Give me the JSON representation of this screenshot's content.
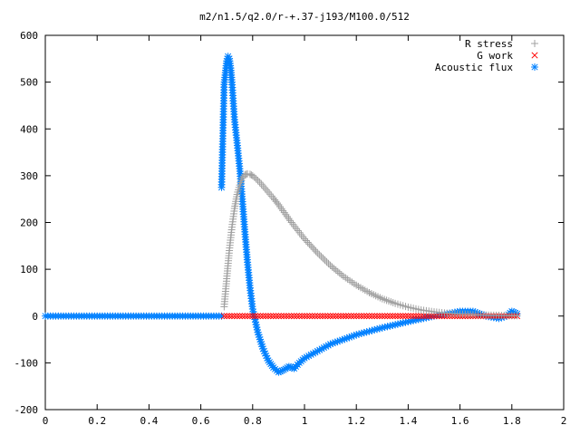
{
  "chart_data": {
    "type": "scatter",
    "title": "m2/n1.5/q2.0/r-+.37-j193/M100.0/512",
    "xlim": [
      0,
      2
    ],
    "ylim": [
      -200,
      600
    ],
    "x_ticks": [
      "0",
      "0.2",
      "0.4",
      "0.6",
      "0.8",
      "1",
      "1.2",
      "1.4",
      "1.6",
      "1.8",
      "2"
    ],
    "y_ticks": [
      "600",
      "500",
      "400",
      "300",
      "200",
      "100",
      "0",
      "-100",
      "-200"
    ],
    "x_tick_values": [
      0,
      0.2,
      0.4,
      0.6,
      0.8,
      1.0,
      1.2,
      1.4,
      1.6,
      1.8,
      2.0
    ],
    "y_tick_values": [
      600,
      500,
      400,
      300,
      200,
      100,
      0,
      -100,
      -200
    ],
    "grid": false,
    "legend_position": "top-right",
    "series": [
      {
        "name": "R stress",
        "marker": "plus",
        "color": "#a0a0a0",
        "x": [
          0.69,
          0.7,
          0.71,
          0.72,
          0.73,
          0.74,
          0.75,
          0.76,
          0.77,
          0.78,
          0.79,
          0.8,
          0.82,
          0.84,
          0.86,
          0.88,
          0.9,
          0.95,
          1.0,
          1.05,
          1.1,
          1.15,
          1.2,
          1.25,
          1.3,
          1.35,
          1.4,
          1.45,
          1.5,
          1.55,
          1.6,
          1.65,
          1.7,
          1.75,
          1.8,
          1.82
        ],
        "y": [
          20,
          80,
          140,
          190,
          230,
          260,
          280,
          295,
          302,
          304,
          303,
          300,
          290,
          278,
          265,
          252,
          238,
          200,
          165,
          135,
          108,
          85,
          66,
          50,
          37,
          27,
          19,
          13,
          9,
          6,
          4,
          3,
          2,
          1.5,
          1,
          1
        ]
      },
      {
        "name": "G work",
        "marker": "cross",
        "color": "#ff0000",
        "x": [
          0.69,
          0.75,
          0.8,
          0.9,
          1.0,
          1.1,
          1.2,
          1.3,
          1.4,
          1.5,
          1.6,
          1.7,
          1.8,
          1.82
        ],
        "y": [
          0,
          0,
          0,
          0,
          0,
          0,
          0,
          0,
          0,
          0,
          0,
          0,
          0,
          0
        ]
      },
      {
        "name": "Acoustic flux",
        "marker": "star",
        "color": "#0080ff",
        "x": [
          0.0,
          0.1,
          0.2,
          0.3,
          0.4,
          0.5,
          0.6,
          0.68,
          0.68,
          0.69,
          0.695,
          0.7,
          0.705,
          0.71,
          0.715,
          0.72,
          0.725,
          0.73,
          0.74,
          0.75,
          0.76,
          0.77,
          0.78,
          0.79,
          0.8,
          0.82,
          0.84,
          0.86,
          0.88,
          0.9,
          0.92,
          0.94,
          0.96,
          0.98,
          1.0,
          1.05,
          1.1,
          1.2,
          1.3,
          1.4,
          1.5,
          1.55,
          1.6,
          1.65,
          1.7,
          1.75,
          1.78,
          1.8,
          1.82
        ],
        "y": [
          0,
          0,
          0,
          0,
          0,
          0,
          0,
          0,
          275,
          495,
          520,
          545,
          555,
          550,
          530,
          500,
          460,
          420,
          370,
          315,
          250,
          180,
          115,
          60,
          15,
          -35,
          -70,
          -95,
          -110,
          -120,
          -115,
          -108,
          -112,
          -100,
          -90,
          -75,
          -60,
          -40,
          -25,
          -12,
          0,
          5,
          10,
          10,
          0,
          -5,
          0,
          10,
          5
        ]
      }
    ]
  }
}
